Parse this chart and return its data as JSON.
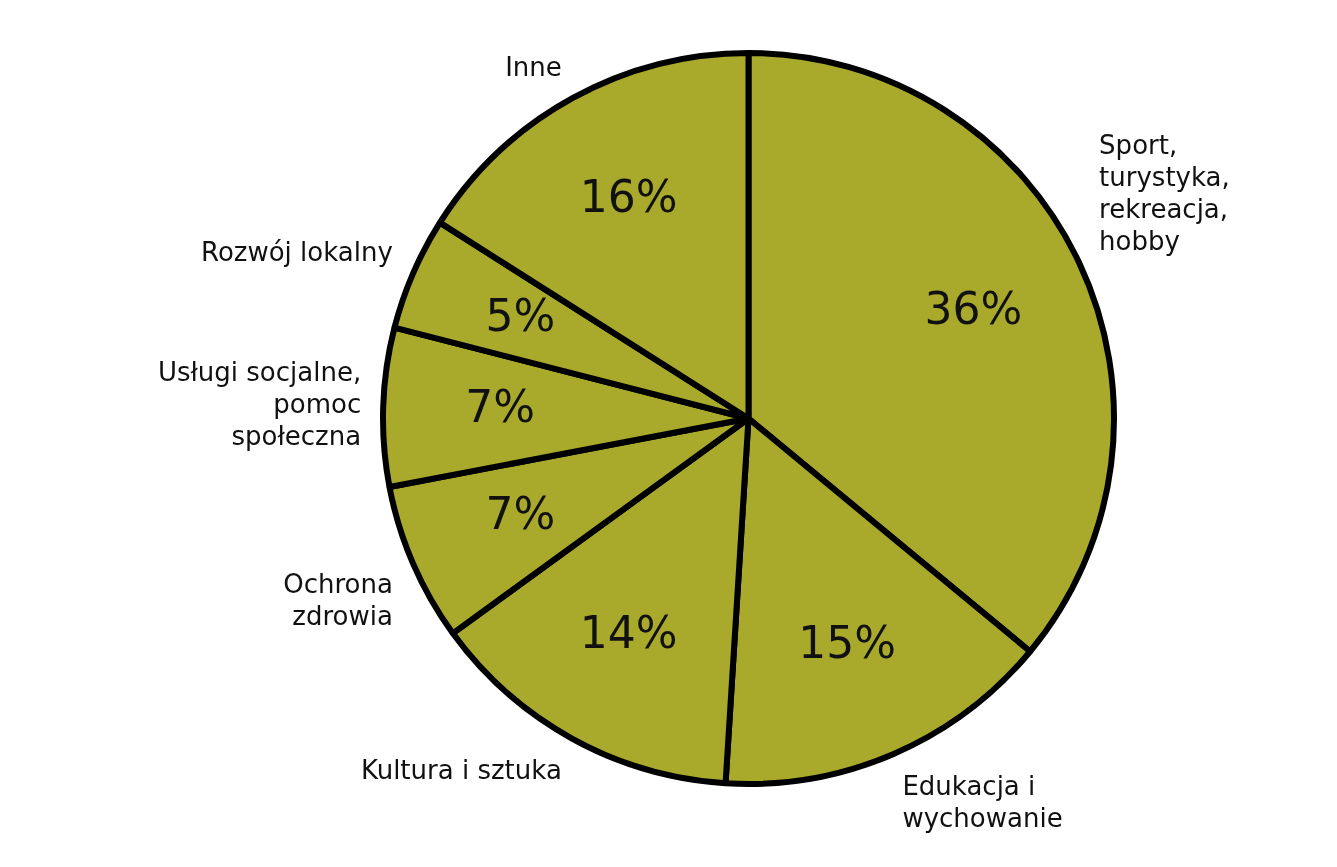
{
  "chart_data": {
    "type": "pie",
    "categories": [
      "Sport, turystyka, rekreacja, hobby",
      "Edukacja i wychowanie",
      "Kultura i sztuka",
      "Ochrona zdrowia",
      "Usługi socjalne, pomoc społeczna",
      "Rozwój lokalny",
      "Inne"
    ],
    "values": [
      36,
      15,
      14,
      7,
      7,
      5,
      16
    ],
    "colors": [
      "#a9aa2b",
      "#a9aa2b",
      "#a9aa2b",
      "#a9aa2b",
      "#a9aa2b",
      "#a9aa2b",
      "#a9aa2b"
    ],
    "value_labels": [
      "36%",
      "15%",
      "14%",
      "7%",
      "7%",
      "5%",
      "16%"
    ],
    "legend": false
  }
}
